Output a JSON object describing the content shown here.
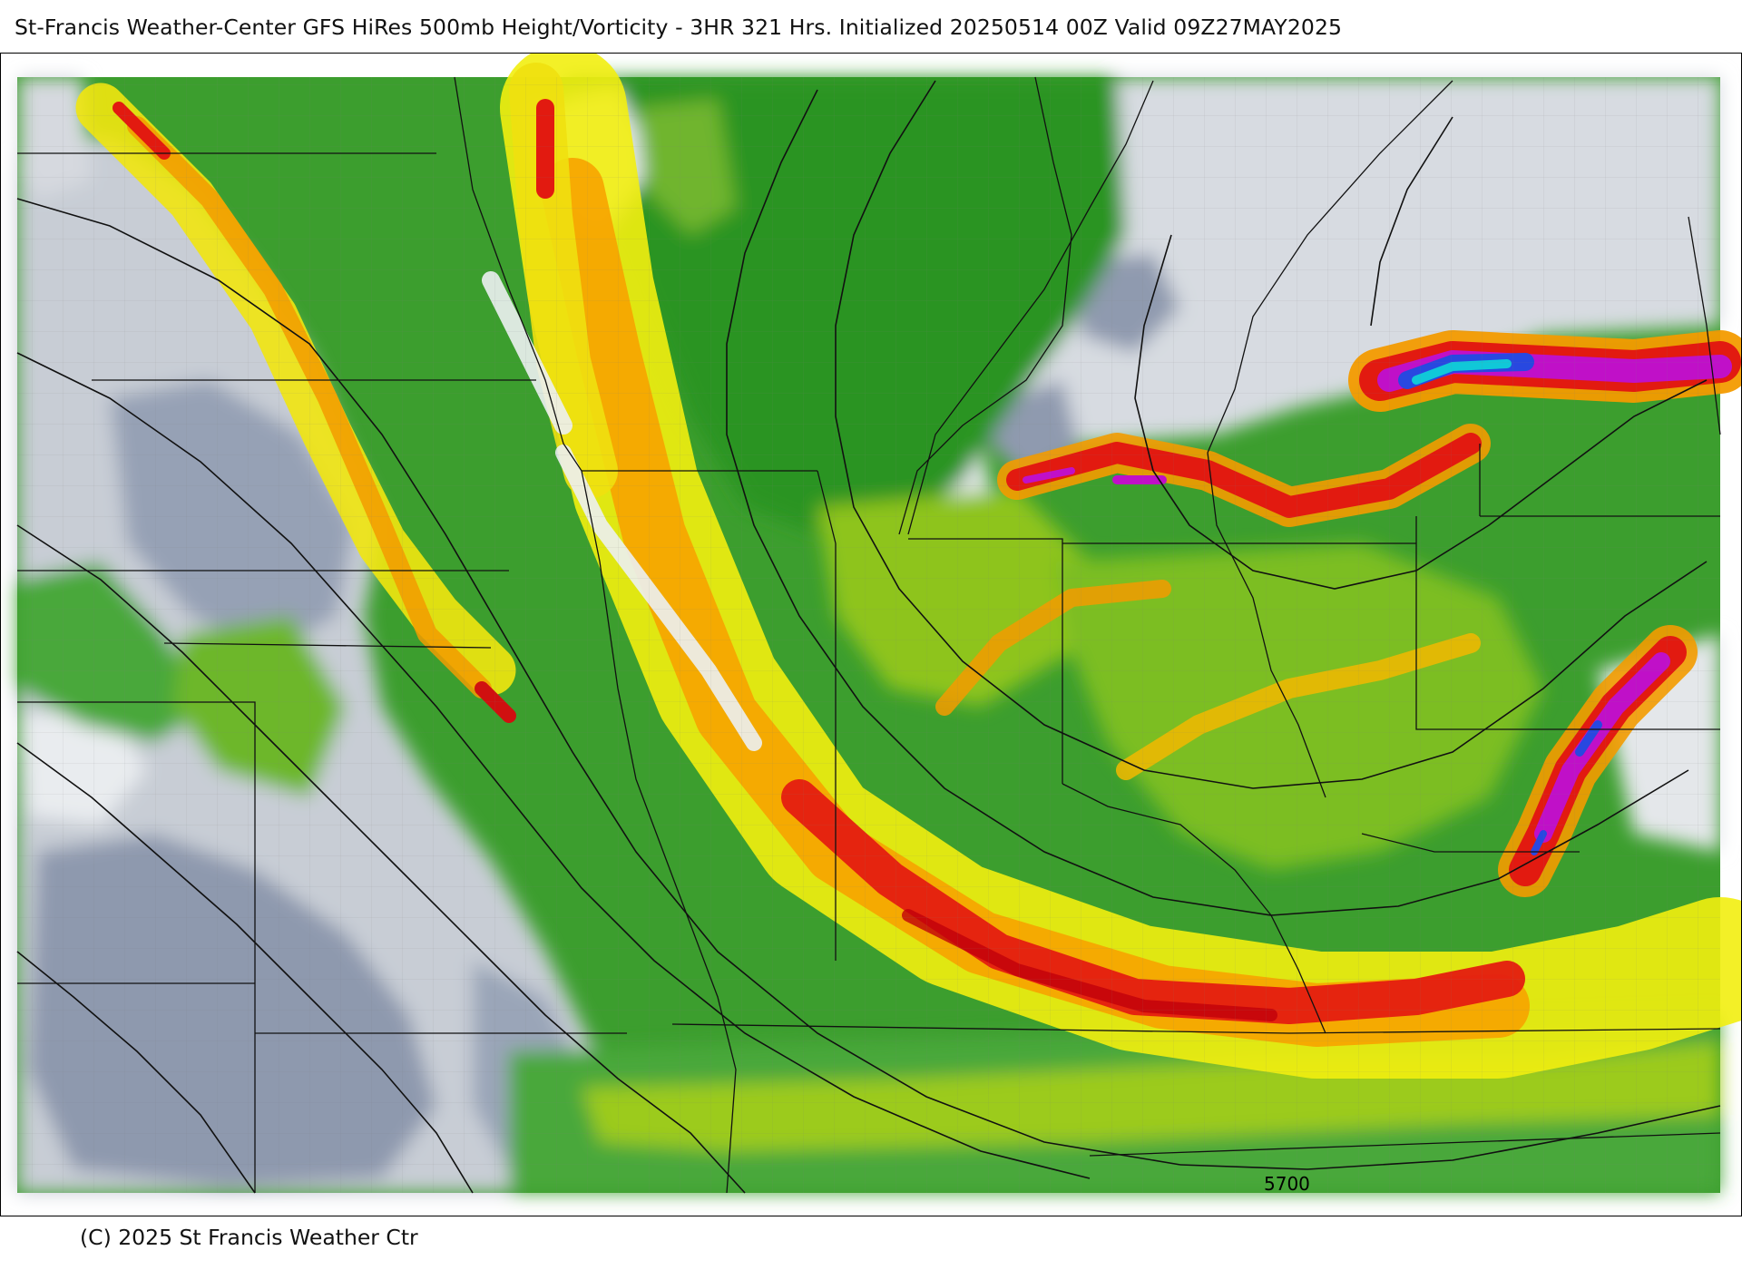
{
  "header": {
    "title": "St-Francis Weather-Center GFS HiRes 500mb Height/Vorticity - 3HR  321 Hrs.  Initialized 20250514 00Z Valid 09Z27MAY2025"
  },
  "map": {
    "contour_labels": [
      "5700"
    ],
    "colors": {
      "low": "#8d98ad",
      "grey_light": "#d9dde3",
      "green_dark": "#0f8a18",
      "green": "#3a9f2c",
      "green_light": "#8ec41a",
      "yellow": "#f5ee00",
      "orange": "#f59a00",
      "red": "#e21a10",
      "magenta": "#c010c8",
      "blue": "#3050e0",
      "cyan": "#10c8d8"
    }
  },
  "footer": {
    "copyright": "(C) 2025 St Francis Weather Ctr"
  }
}
